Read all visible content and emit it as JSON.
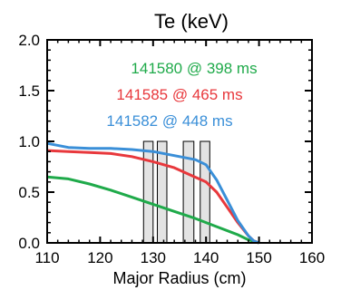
{
  "chart_data": {
    "type": "line",
    "title": "Te (keV)",
    "xlabel": "Major Radius (cm)",
    "ylabel": "",
    "xlim": [
      110,
      160
    ],
    "ylim": [
      0,
      2.0
    ],
    "xticks": [
      110,
      120,
      130,
      140,
      150,
      160
    ],
    "xtick_labels": [
      "110",
      "120",
      "130",
      "140",
      "150",
      "160"
    ],
    "yticks": [
      0.0,
      0.5,
      1.0,
      1.5,
      2.0
    ],
    "ytick_labels": [
      "0.0",
      "0.5",
      "1.0",
      "1.5",
      "2.0"
    ],
    "grid": false,
    "legend_position": "top-center",
    "series": [
      {
        "name": "141580 @ 398 ms",
        "color": "#1faa4a",
        "x": [
          110,
          114,
          118,
          122,
          126,
          130,
          134,
          138,
          142,
          146,
          148,
          150
        ],
        "y": [
          0.65,
          0.63,
          0.58,
          0.52,
          0.45,
          0.38,
          0.31,
          0.24,
          0.16,
          0.08,
          0.03,
          0.0
        ]
      },
      {
        "name": "141585 @ 465 ms",
        "color": "#e8383c",
        "x": [
          110,
          114,
          118,
          122,
          126,
          130,
          134,
          137,
          140,
          142,
          144,
          146,
          148,
          149,
          150
        ],
        "y": [
          0.91,
          0.9,
          0.89,
          0.88,
          0.85,
          0.8,
          0.74,
          0.67,
          0.6,
          0.5,
          0.35,
          0.2,
          0.07,
          0.02,
          0.0
        ]
      },
      {
        "name": "141582 @ 448 ms",
        "color": "#3a8fd8",
        "x": [
          110,
          114,
          118,
          122,
          126,
          130,
          134,
          138,
          140,
          142,
          144,
          146,
          148,
          149,
          150
        ],
        "y": [
          0.98,
          0.94,
          0.93,
          0.93,
          0.92,
          0.9,
          0.86,
          0.82,
          0.77,
          0.62,
          0.42,
          0.22,
          0.07,
          0.02,
          0.0
        ]
      }
    ],
    "shaded_regions": [
      {
        "x0": 128.2,
        "x1": 130.0,
        "y0": 0.0,
        "y1": 1.0
      },
      {
        "x0": 130.8,
        "x1": 132.6,
        "y0": 0.0,
        "y1": 1.0
      },
      {
        "x0": 135.7,
        "x1": 137.7,
        "y0": 0.0,
        "y1": 1.0
      },
      {
        "x0": 138.9,
        "x1": 140.7,
        "y0": 0.0,
        "y1": 1.0
      }
    ],
    "shaded_color": "#e3e3e3"
  }
}
